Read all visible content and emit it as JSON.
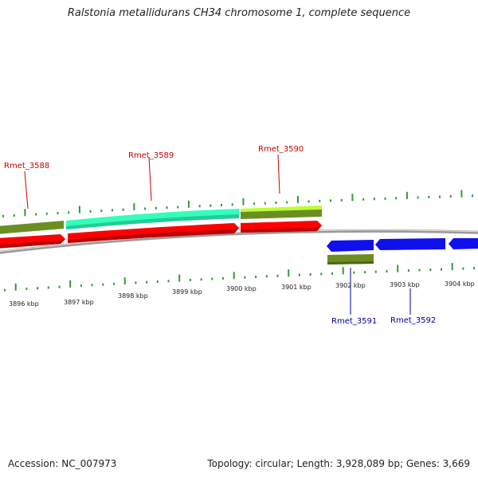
{
  "title": "Ralstonia metallidurans CH34 chromosome 1, complete sequence",
  "footer": {
    "accession": "Accession: NC_007973",
    "stats": "Topology: circular; Length: 3,928,089 bp; Genes: 3,669"
  },
  "colors": {
    "cds_red": "#ff0000",
    "cds_blue": "#1010ee",
    "gene_olive": "#6b8e23",
    "gene_mint": "#33ffbb",
    "gene_lime": "#bbff33",
    "backbone": "#888888",
    "tick_green": "#339933",
    "label_red": "#cc0000",
    "label_blue": "#000099"
  },
  "scale": {
    "tick_labels": [
      "3896 kbp",
      "3897 kbp",
      "3898 kbp",
      "3899 kbp",
      "3900 kbp",
      "3901 kbp",
      "3902 kbp",
      "3903 kbp",
      "3904 kbp"
    ]
  },
  "genes": {
    "top": [
      "Rmet_3588",
      "Rmet_3589",
      "Rmet_3590"
    ],
    "bottom": [
      "Rmet_3591",
      "Rmet_3592"
    ]
  }
}
